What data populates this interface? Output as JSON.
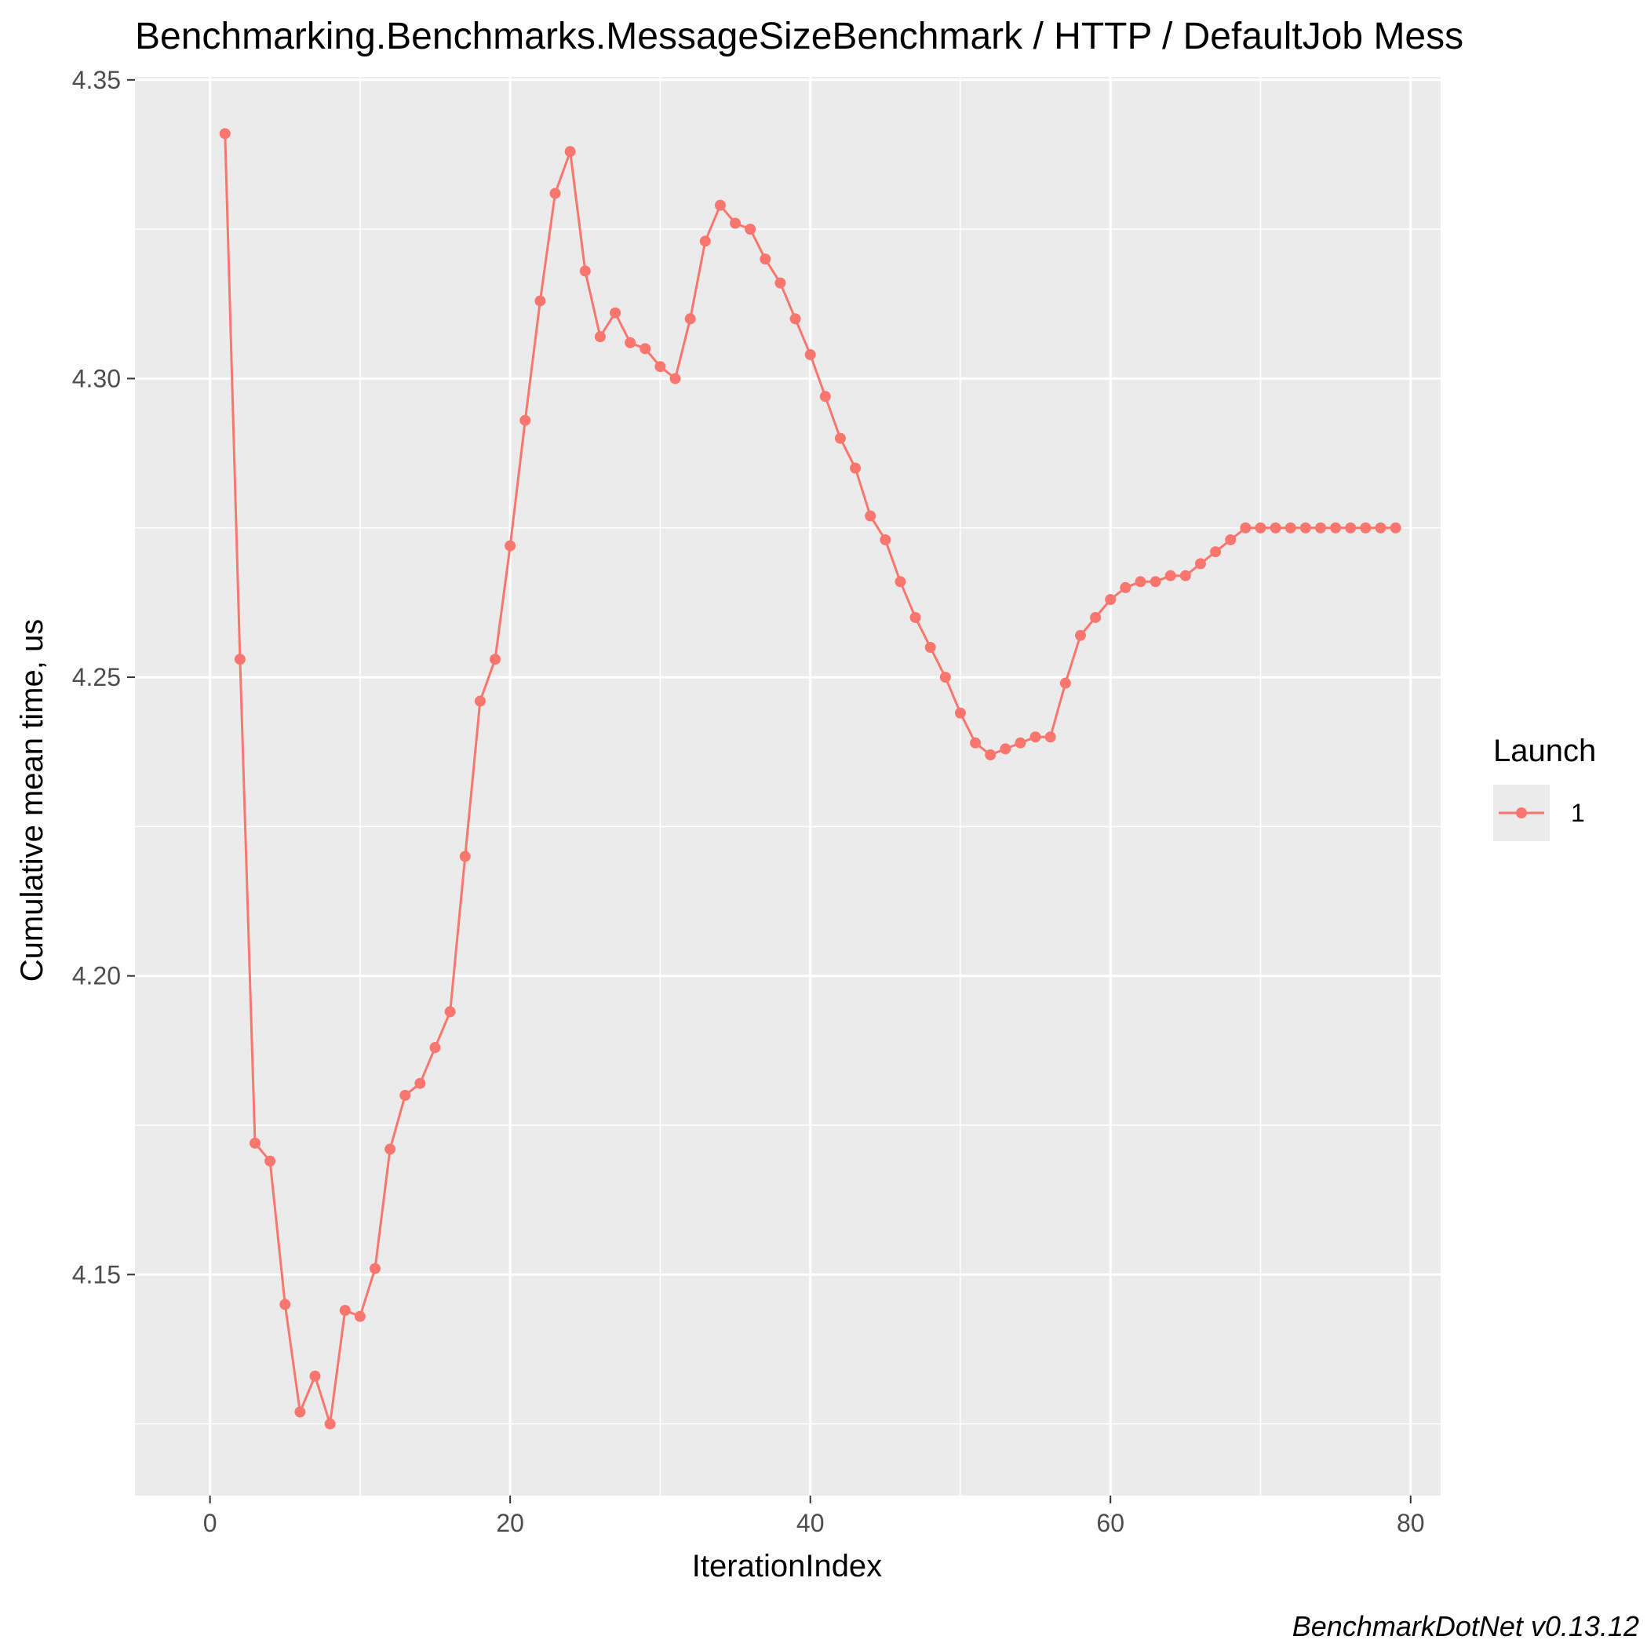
{
  "chart_data": {
    "type": "line",
    "title": "Benchmarking.Benchmarks.MessageSizeBenchmark / HTTP / DefaultJob Mess",
    "xlabel": "IterationIndex",
    "ylabel": "Cumulative mean time, us",
    "caption": "BenchmarkDotNet v0.13.12",
    "xlim": [
      -5,
      82
    ],
    "ylim": [
      4.113,
      4.3505
    ],
    "x_ticks": [
      0,
      20,
      40,
      60,
      80
    ],
    "x_tick_labels": [
      "0",
      "20",
      "40",
      "60",
      "80"
    ],
    "y_ticks": [
      4.15,
      4.2,
      4.25,
      4.3,
      4.35
    ],
    "y_tick_labels": [
      "4.15",
      "4.20",
      "4.25",
      "4.30",
      "4.35"
    ],
    "grid": true,
    "legend": {
      "title": "Launch",
      "position": "right",
      "entries": [
        "1"
      ]
    },
    "colors": {
      "series": "#F8766D",
      "panel": "#EBEBEB",
      "grid": "#FFFFFF",
      "tick_text": "#4D4D4D"
    },
    "series": [
      {
        "name": "1",
        "x": [
          1,
          2,
          3,
          4,
          5,
          6,
          7,
          8,
          9,
          10,
          11,
          12,
          13,
          14,
          15,
          16,
          17,
          18,
          19,
          20,
          21,
          22,
          23,
          24,
          25,
          26,
          27,
          28,
          29,
          30,
          31,
          32,
          33,
          34,
          35,
          36,
          37,
          38,
          39,
          40,
          41,
          42,
          43,
          44,
          45,
          46,
          47,
          48,
          49,
          50,
          51,
          52,
          53,
          54,
          55,
          56,
          57,
          58,
          59,
          60,
          61,
          62,
          63,
          64,
          65,
          66,
          67,
          68,
          69,
          70,
          71,
          72,
          73,
          74,
          75,
          76,
          77,
          78,
          79
        ],
        "y": [
          4.341,
          4.253,
          4.172,
          4.169,
          4.145,
          4.127,
          4.133,
          4.125,
          4.144,
          4.143,
          4.151,
          4.171,
          4.18,
          4.182,
          4.188,
          4.194,
          4.22,
          4.246,
          4.253,
          4.272,
          4.293,
          4.313,
          4.331,
          4.338,
          4.318,
          4.307,
          4.311,
          4.306,
          4.305,
          4.302,
          4.3,
          4.31,
          4.323,
          4.329,
          4.326,
          4.325,
          4.32,
          4.316,
          4.31,
          4.304,
          4.297,
          4.29,
          4.285,
          4.277,
          4.273,
          4.266,
          4.26,
          4.255,
          4.25,
          4.244,
          4.239,
          4.237,
          4.238,
          4.239,
          4.24,
          4.24,
          4.249,
          4.257,
          4.26,
          4.263,
          4.265,
          4.266,
          4.266,
          4.267,
          4.267,
          4.269,
          4.271,
          4.273,
          4.275,
          4.275,
          4.275,
          4.275,
          4.275,
          4.275,
          4.275,
          4.275,
          4.275,
          4.275,
          4.275
        ]
      }
    ]
  }
}
